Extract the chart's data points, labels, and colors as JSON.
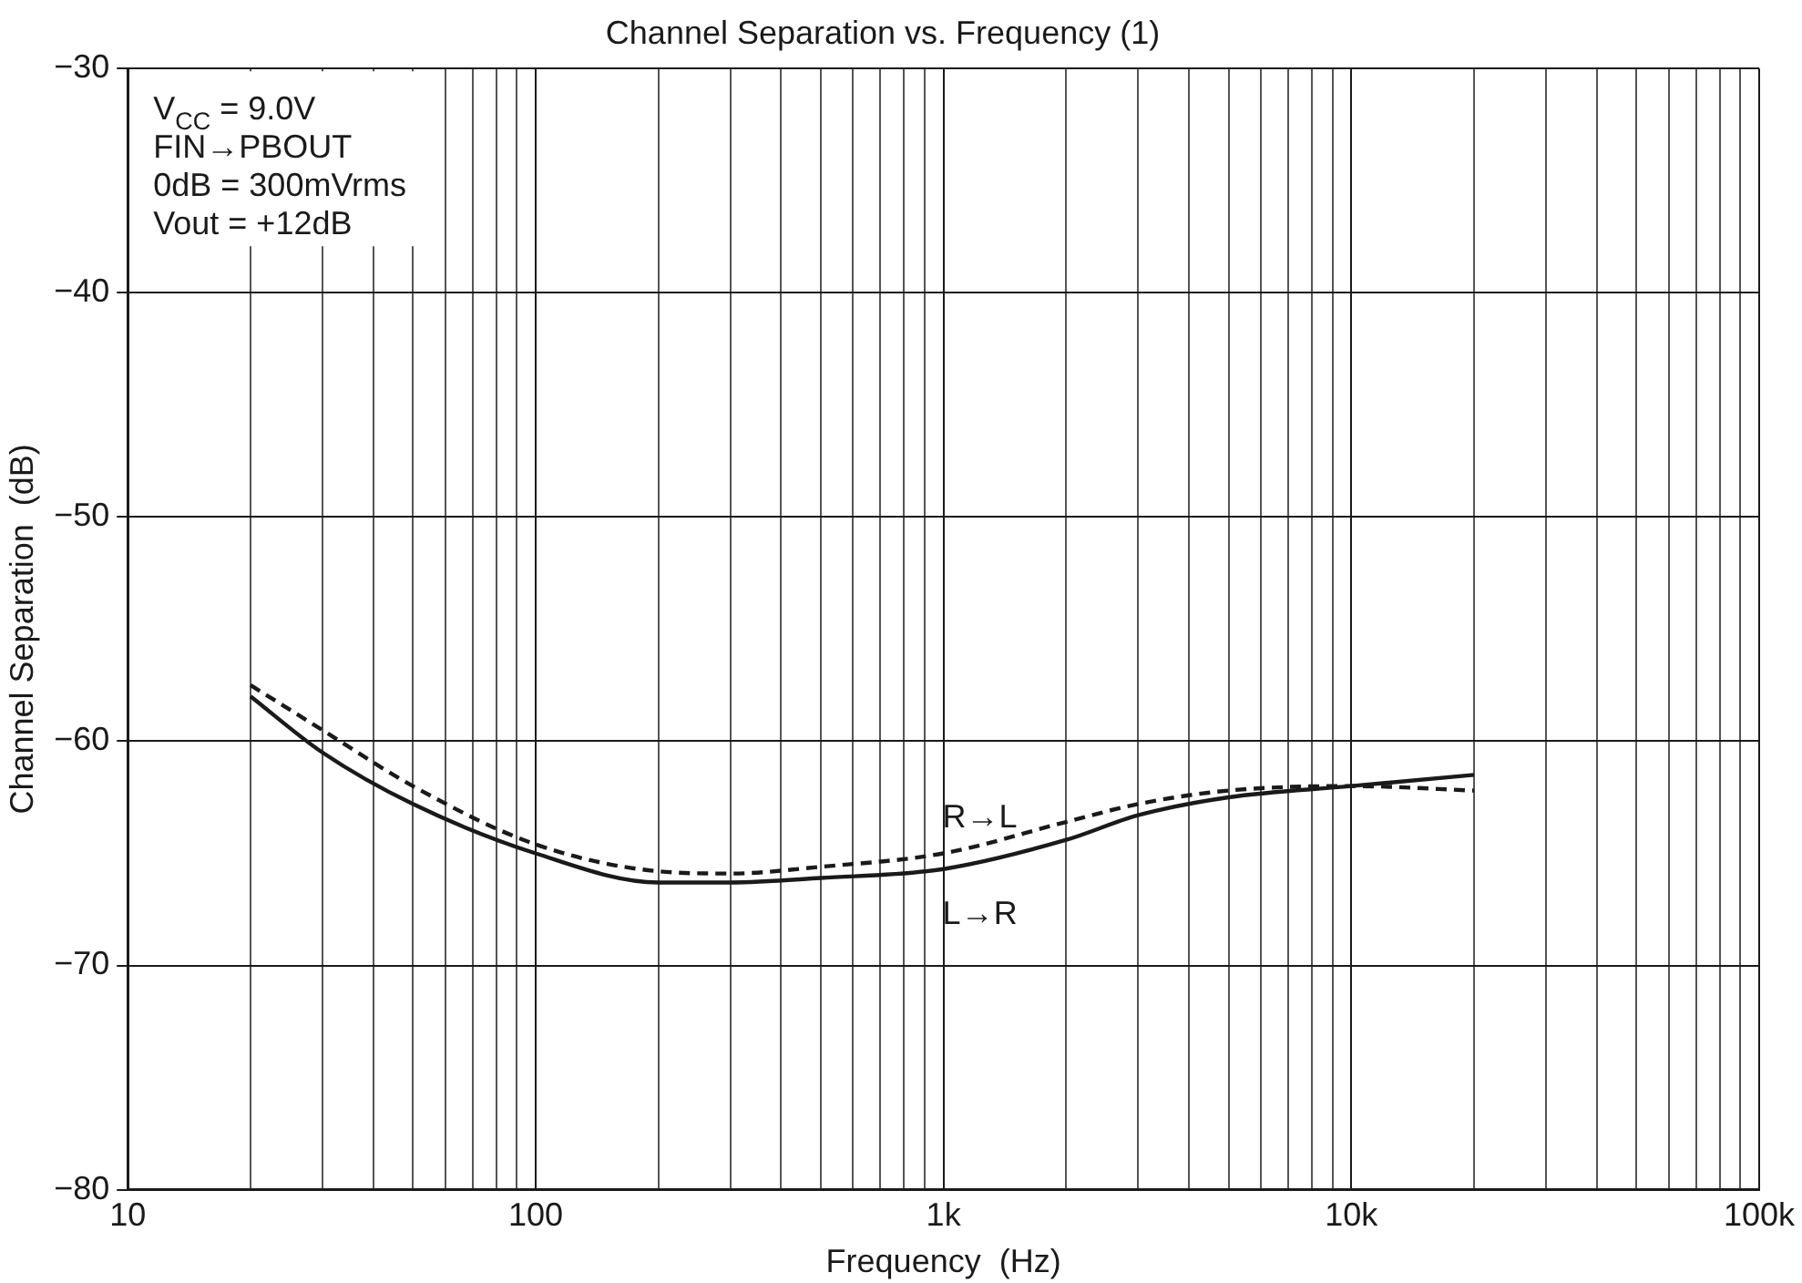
{
  "chart_data": {
    "type": "line",
    "title": "Channel Separation vs. Frequency (1)",
    "xlabel": "Frequency  (Hz)",
    "ylabel": "Channel Separation  (dB)",
    "log": "x",
    "grid": true,
    "legend": false,
    "marker": "none",
    "x": [
      20,
      30,
      50,
      100,
      200,
      300,
      500,
      1000,
      2000,
      3000,
      5000,
      10000,
      20000
    ],
    "xlim": [
      10,
      100000
    ],
    "xticks": [
      {
        "value": 10,
        "label": "10"
      },
      {
        "value": 20,
        "label": null
      },
      {
        "value": 30,
        "label": null
      },
      {
        "value": 40,
        "label": null
      },
      {
        "value": 50,
        "label": null
      },
      {
        "value": 60,
        "label": null
      },
      {
        "value": 70,
        "label": null
      },
      {
        "value": 80,
        "label": null
      },
      {
        "value": 90,
        "label": null
      },
      {
        "value": 100,
        "label": "100"
      },
      {
        "value": 200,
        "label": null
      },
      {
        "value": 300,
        "label": null
      },
      {
        "value": 400,
        "label": null
      },
      {
        "value": 500,
        "label": null
      },
      {
        "value": 600,
        "label": null
      },
      {
        "value": 700,
        "label": null
      },
      {
        "value": 800,
        "label": null
      },
      {
        "value": 900,
        "label": null
      },
      {
        "value": 1000,
        "label": "1k"
      },
      {
        "value": 2000,
        "label": null
      },
      {
        "value": 3000,
        "label": null
      },
      {
        "value": 4000,
        "label": null
      },
      {
        "value": 5000,
        "label": null
      },
      {
        "value": 6000,
        "label": null
      },
      {
        "value": 7000,
        "label": null
      },
      {
        "value": 8000,
        "label": null
      },
      {
        "value": 9000,
        "label": null
      },
      {
        "value": 10000,
        "label": "10k"
      },
      {
        "value": 20000,
        "label": null
      },
      {
        "value": 30000,
        "label": null
      },
      {
        "value": 40000,
        "label": null
      },
      {
        "value": 50000,
        "label": null
      },
      {
        "value": 60000,
        "label": null
      },
      {
        "value": 70000,
        "label": null
      },
      {
        "value": 80000,
        "label": null
      },
      {
        "value": 90000,
        "label": null
      },
      {
        "value": 100000,
        "label": "100k"
      }
    ],
    "ylim": [
      -80,
      -30
    ],
    "yticks": [
      {
        "value": -80,
        "label": "−80"
      },
      {
        "value": -70,
        "label": "−70"
      },
      {
        "value": -60,
        "label": "−60"
      },
      {
        "value": -50,
        "label": "−50"
      },
      {
        "value": -40,
        "label": "−40"
      },
      {
        "value": -30,
        "label": "−30"
      }
    ],
    "series": [
      {
        "name": "R→L",
        "color": "#1a1a1a",
        "line_style": "dashed",
        "values": [
          -57.5,
          -59.5,
          -62.0,
          -64.6,
          -65.8,
          -65.9,
          -65.6,
          -65.0,
          -63.6,
          -62.8,
          -62.2,
          -62.0,
          -62.2
        ]
      },
      {
        "name": "L→R",
        "color": "#1a1a1a",
        "line_style": "solid",
        "values": [
          -58.0,
          -60.5,
          -62.8,
          -65.0,
          -66.3,
          -66.3,
          -66.1,
          -65.7,
          -64.4,
          -63.3,
          -62.5,
          -62.0,
          -61.5
        ]
      }
    ],
    "annotations": [
      "V$_{CC}$ = 9.0V",
      "FIN→PBOUT",
      "0dB = 300mVrms",
      "Vout = +12dB"
    ]
  }
}
